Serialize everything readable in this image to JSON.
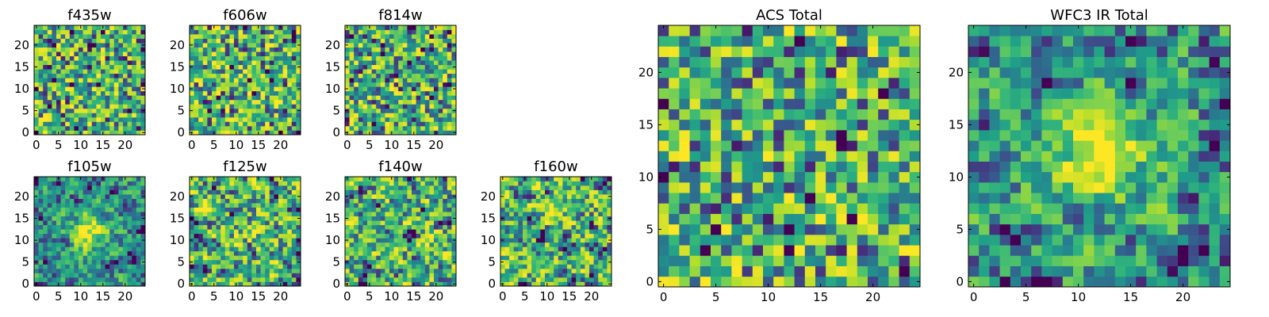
{
  "chart_data": [
    {
      "type": "heatmap",
      "title": "f435w",
      "grid_size": 25,
      "xticks": [
        "0",
        "5",
        "10",
        "15",
        "20"
      ],
      "yticks": [
        "0",
        "5",
        "10",
        "15",
        "20"
      ],
      "colormap": "viridis",
      "pattern": "noise",
      "seed": 11
    },
    {
      "type": "heatmap",
      "title": "f606w",
      "grid_size": 25,
      "xticks": [
        "0",
        "5",
        "10",
        "15",
        "20"
      ],
      "yticks": [
        "0",
        "5",
        "10",
        "15",
        "20"
      ],
      "colormap": "viridis",
      "pattern": "noise",
      "seed": 23
    },
    {
      "type": "heatmap",
      "title": "f814w",
      "grid_size": 25,
      "xticks": [
        "0",
        "5",
        "10",
        "15",
        "20"
      ],
      "yticks": [
        "0",
        "5",
        "10",
        "15",
        "20"
      ],
      "colormap": "viridis",
      "pattern": "noise",
      "seed": 37
    },
    {
      "type": "heatmap",
      "title": "f105w",
      "grid_size": 25,
      "xticks": [
        "0",
        "5",
        "10",
        "15",
        "20"
      ],
      "yticks": [
        "0",
        "5",
        "10",
        "15",
        "20"
      ],
      "colormap": "viridis",
      "pattern": "source",
      "seed": 41
    },
    {
      "type": "heatmap",
      "title": "f125w",
      "grid_size": 25,
      "xticks": [
        "0",
        "5",
        "10",
        "15",
        "20"
      ],
      "yticks": [
        "0",
        "5",
        "10",
        "15",
        "20"
      ],
      "colormap": "viridis",
      "pattern": "smooth",
      "seed": 53
    },
    {
      "type": "heatmap",
      "title": "f140w",
      "grid_size": 25,
      "xticks": [
        "0",
        "5",
        "10",
        "15",
        "20"
      ],
      "yticks": [
        "0",
        "5",
        "10",
        "15",
        "20"
      ],
      "colormap": "viridis",
      "pattern": "smooth",
      "seed": 67
    },
    {
      "type": "heatmap",
      "title": "f160w",
      "grid_size": 25,
      "xticks": [
        "0",
        "5",
        "10",
        "15",
        "20"
      ],
      "yticks": [
        "0",
        "5",
        "10",
        "15",
        "20"
      ],
      "colormap": "viridis",
      "pattern": "smooth",
      "seed": 79
    },
    {
      "type": "heatmap",
      "title": "ACS Total",
      "grid_size": 25,
      "xticks": [
        "0",
        "5",
        "10",
        "15",
        "20"
      ],
      "yticks": [
        "0",
        "5",
        "10",
        "15",
        "20"
      ],
      "colormap": "viridis",
      "pattern": "noise",
      "seed": 83
    },
    {
      "type": "heatmap",
      "title": "WFC3 IR Total",
      "grid_size": 25,
      "xticks": [
        "0",
        "5",
        "10",
        "15",
        "20"
      ],
      "yticks": [
        "0",
        "5",
        "10",
        "15",
        "20"
      ],
      "colormap": "viridis",
      "pattern": "source",
      "seed": 97
    }
  ]
}
